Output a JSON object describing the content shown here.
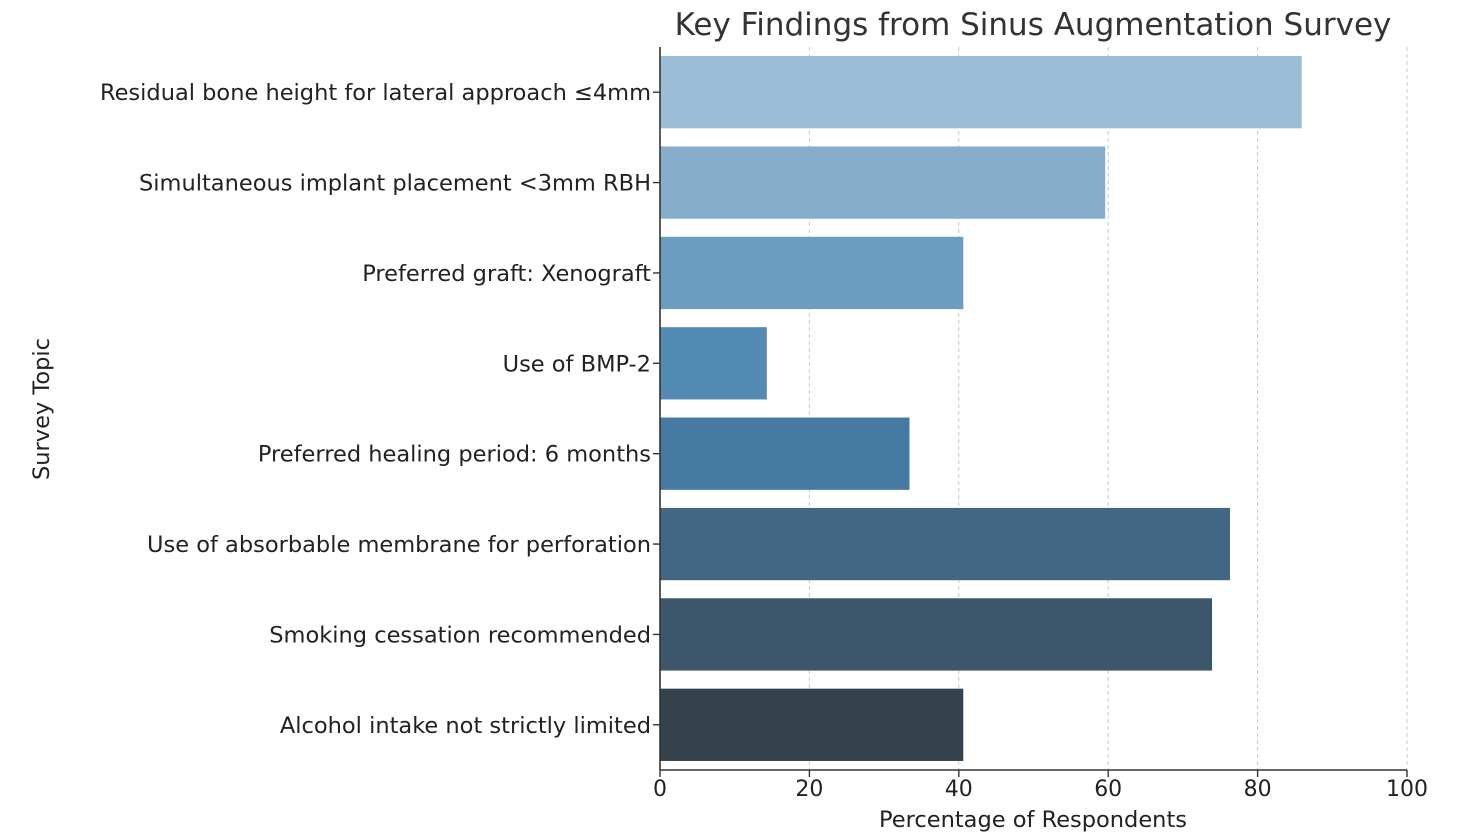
{
  "chart_data": {
    "type": "bar",
    "orientation": "horizontal",
    "title": "Key Findings from Sinus Augmentation Survey",
    "xlabel": "Percentage of Respondents",
    "ylabel": "Survey Topic",
    "xlim": [
      0,
      100
    ],
    "xticks": [
      "0",
      "20",
      "40",
      "60",
      "80",
      "100"
    ],
    "grid": "x-dashed",
    "categories": [
      "Residual bone height for lateral approach ≤4mm",
      "Simultaneous implant placement <3mm RBH",
      "Preferred graft: Xenograft",
      "Use of BMP-2",
      "Preferred healing period: 6 months",
      "Use of absorbable membrane for perforation",
      "Smoking cessation recommended",
      "Alcohol intake not strictly limited"
    ],
    "values": [
      85.9,
      59.6,
      40.6,
      14.3,
      33.4,
      76.3,
      73.9,
      40.6
    ],
    "colors": [
      "#9bbdd5",
      "#86adca",
      "#6b9dc0",
      "#548bb5",
      "#4479a2",
      "#426784",
      "#3c576b",
      "#36434d"
    ]
  }
}
